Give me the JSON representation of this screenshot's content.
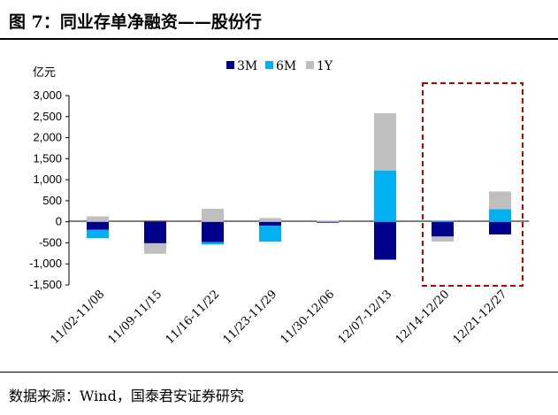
{
  "figure": {
    "title": "图 7：同业存单净融资——股份行",
    "source": "数据来源：Wind，国泰君安证券研究"
  },
  "chart_data": {
    "type": "bar",
    "stacked": true,
    "yunit": "亿元",
    "ylim": [
      -1500,
      3000
    ],
    "yticks": [
      3000,
      2500,
      2000,
      1500,
      1000,
      500,
      0,
      -500,
      -1000,
      -1500
    ],
    "ytick_labels": [
      "3,000",
      "2,500",
      "2,000",
      "1,500",
      "1,000",
      "500",
      "0",
      "-500",
      "-1,000",
      "-1,500"
    ],
    "categories": [
      "11/02-11/08",
      "11/09-11/15",
      "11/16-11/22",
      "11/23-11/29",
      "11/30-12/06",
      "12/07-12/13",
      "12/14-12/20",
      "12/21-12/27"
    ],
    "series": [
      {
        "name": "3M",
        "color": "#00008B",
        "values": [
          -190,
          -510,
          -480,
          -90,
          -10,
          -900,
          -350,
          -300
        ]
      },
      {
        "name": "6M",
        "color": "#00B0F0",
        "values": [
          -200,
          0,
          -60,
          -380,
          0,
          1220,
          20,
          300
        ]
      },
      {
        "name": "1Y",
        "color": "#BFBFBF",
        "values": [
          130,
          -250,
          310,
          90,
          30,
          1360,
          -120,
          420
        ]
      }
    ],
    "legend_position": "top",
    "grid": false,
    "highlight_categories": [
      "12/14-12/20",
      "12/21-12/27"
    ]
  }
}
